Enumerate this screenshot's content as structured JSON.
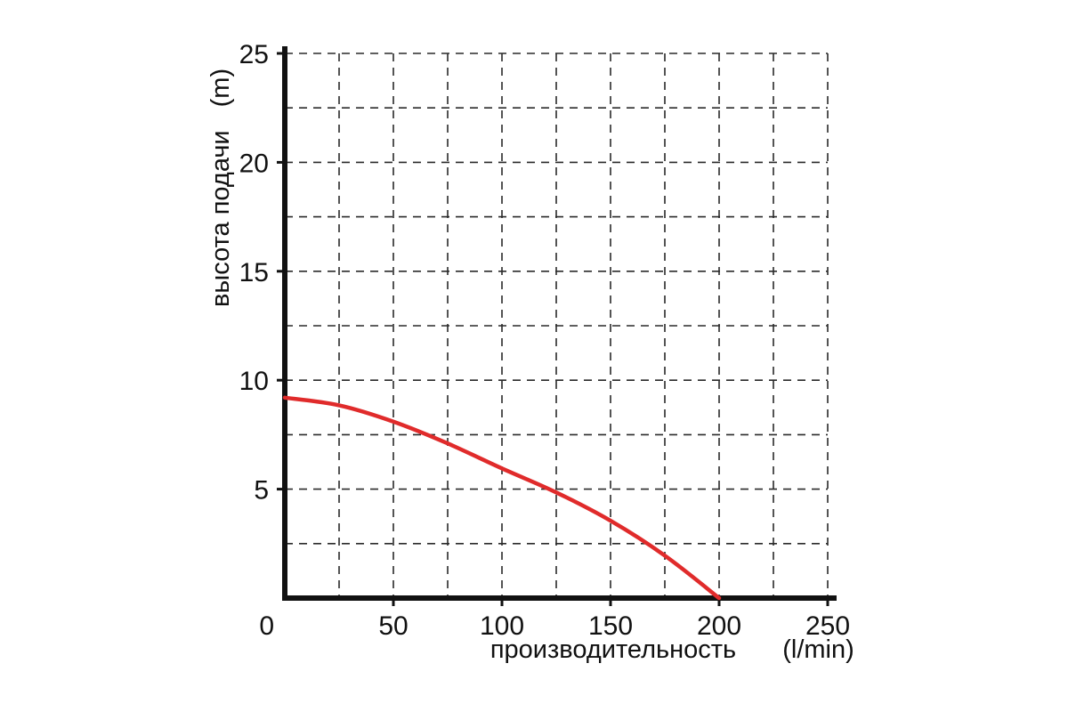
{
  "chart_data": {
    "type": "line",
    "title": "",
    "xlabel": "производительность",
    "x_unit": "(l/min)",
    "ylabel": "высота подачи",
    "y_unit": "(m)",
    "xlim": [
      0,
      250
    ],
    "ylim": [
      0,
      25
    ],
    "x_major_ticks": [
      0,
      50,
      100,
      150,
      200,
      250
    ],
    "y_major_ticks": [
      5,
      10,
      15,
      20,
      25
    ],
    "x_grid_step": 25,
    "y_grid_step": 2.5,
    "grid_style": "dashed",
    "legend": "none",
    "series": [
      {
        "name": "pump-performance-curve",
        "color": "#e02b2b",
        "points": [
          [
            0,
            9.2
          ],
          [
            25,
            8.85
          ],
          [
            50,
            8.1
          ],
          [
            75,
            7.1
          ],
          [
            100,
            5.95
          ],
          [
            125,
            4.85
          ],
          [
            150,
            3.55
          ],
          [
            175,
            1.95
          ],
          [
            200,
            0
          ]
        ]
      }
    ]
  }
}
